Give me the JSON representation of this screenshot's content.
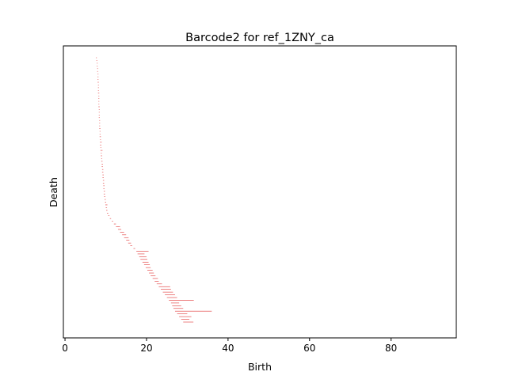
{
  "chart_data": {
    "type": "barcode",
    "title": "Barcode2 for ref_1ZNY_ca",
    "xlabel": "Birth",
    "ylabel": "Death",
    "xlim": [
      -0.4,
      96
    ],
    "x_ticks": [
      0,
      20,
      40,
      60,
      80
    ],
    "y_ticks": [],
    "grid": false,
    "bar_color": "#e03030",
    "bars": [
      {
        "birth": 7.6,
        "death": 7.8
      },
      {
        "birth": 7.7,
        "death": 7.9
      },
      {
        "birth": 7.8,
        "death": 8.0
      },
      {
        "birth": 7.8,
        "death": 8.0
      },
      {
        "birth": 7.9,
        "death": 8.1
      },
      {
        "birth": 7.9,
        "death": 8.1
      },
      {
        "birth": 8.0,
        "death": 8.2
      },
      {
        "birth": 8.0,
        "death": 8.2
      },
      {
        "birth": 8.0,
        "death": 8.2
      },
      {
        "birth": 8.0,
        "death": 8.3
      },
      {
        "birth": 8.1,
        "death": 8.3
      },
      {
        "birth": 8.1,
        "death": 8.3
      },
      {
        "birth": 8.1,
        "death": 8.3
      },
      {
        "birth": 8.1,
        "death": 8.4
      },
      {
        "birth": 8.2,
        "death": 8.4
      },
      {
        "birth": 8.2,
        "death": 8.4
      },
      {
        "birth": 8.2,
        "death": 8.4
      },
      {
        "birth": 8.2,
        "death": 8.4
      },
      {
        "birth": 8.2,
        "death": 8.5
      },
      {
        "birth": 8.3,
        "death": 8.5
      },
      {
        "birth": 8.3,
        "death": 8.5
      },
      {
        "birth": 8.3,
        "death": 8.5
      },
      {
        "birth": 8.3,
        "death": 8.5
      },
      {
        "birth": 8.4,
        "death": 8.6
      },
      {
        "birth": 8.4,
        "death": 8.6
      },
      {
        "birth": 8.4,
        "death": 8.6
      },
      {
        "birth": 8.4,
        "death": 8.7
      },
      {
        "birth": 8.5,
        "death": 8.7
      },
      {
        "birth": 8.5,
        "death": 8.7
      },
      {
        "birth": 8.5,
        "death": 8.8
      },
      {
        "birth": 8.6,
        "death": 8.8
      },
      {
        "birth": 8.6,
        "death": 9.0
      },
      {
        "birth": 8.6,
        "death": 8.9
      },
      {
        "birth": 8.7,
        "death": 8.9
      },
      {
        "birth": 8.7,
        "death": 9.2
      },
      {
        "birth": 8.8,
        "death": 9.0
      },
      {
        "birth": 8.8,
        "death": 9.1
      },
      {
        "birth": 8.9,
        "death": 9.1
      },
      {
        "birth": 8.9,
        "death": 9.2
      },
      {
        "birth": 9.0,
        "death": 9.3
      },
      {
        "birth": 9.0,
        "death": 9.3
      },
      {
        "birth": 9.1,
        "death": 9.4
      },
      {
        "birth": 9.1,
        "death": 9.4
      },
      {
        "birth": 9.2,
        "death": 9.5
      },
      {
        "birth": 9.2,
        "death": 9.5
      },
      {
        "birth": 9.3,
        "death": 9.6
      },
      {
        "birth": 9.3,
        "death": 9.6
      },
      {
        "birth": 9.4,
        "death": 9.7
      },
      {
        "birth": 9.4,
        "death": 9.7
      },
      {
        "birth": 9.5,
        "death": 9.8
      },
      {
        "birth": 9.5,
        "death": 9.8
      },
      {
        "birth": 9.6,
        "death": 9.9
      },
      {
        "birth": 9.7,
        "death": 10.0
      },
      {
        "birth": 9.8,
        "death": 10.1
      },
      {
        "birth": 9.9,
        "death": 10.4
      },
      {
        "birth": 10.0,
        "death": 10.3
      },
      {
        "birth": 10.1,
        "death": 10.4
      },
      {
        "birth": 10.3,
        "death": 10.6
      },
      {
        "birth": 10.6,
        "death": 10.9
      },
      {
        "birth": 11.0,
        "death": 11.3
      },
      {
        "birth": 11.5,
        "death": 11.8
      },
      {
        "birth": 12.0,
        "death": 12.5
      },
      {
        "birth": 12.5,
        "death": 13.5
      },
      {
        "birth": 13.0,
        "death": 13.8
      },
      {
        "birth": 13.5,
        "death": 14.5
      },
      {
        "birth": 14.0,
        "death": 15.0
      },
      {
        "birth": 14.5,
        "death": 15.6
      },
      {
        "birth": 15.0,
        "death": 15.8
      },
      {
        "birth": 15.5,
        "death": 16.2
      },
      {
        "birth": 16.0,
        "death": 16.5
      },
      {
        "birth": 16.8,
        "death": 17.2
      },
      {
        "birth": 17.5,
        "death": 20.5
      },
      {
        "birth": 17.8,
        "death": 19.5
      },
      {
        "birth": 18.2,
        "death": 20.0
      },
      {
        "birth": 18.5,
        "death": 20.2
      },
      {
        "birth": 19.0,
        "death": 20.5
      },
      {
        "birth": 19.4,
        "death": 20.8
      },
      {
        "birth": 19.8,
        "death": 21.0
      },
      {
        "birth": 20.2,
        "death": 21.5
      },
      {
        "birth": 20.6,
        "death": 21.8
      },
      {
        "birth": 21.0,
        "death": 22.2
      },
      {
        "birth": 21.5,
        "death": 22.8
      },
      {
        "birth": 22.0,
        "death": 23.0
      },
      {
        "birth": 22.5,
        "death": 23.8
      },
      {
        "birth": 23.0,
        "death": 25.8
      },
      {
        "birth": 23.5,
        "death": 26.0
      },
      {
        "birth": 24.0,
        "death": 26.5
      },
      {
        "birth": 24.5,
        "death": 27.0
      },
      {
        "birth": 25.0,
        "death": 27.5
      },
      {
        "birth": 25.5,
        "death": 31.6
      },
      {
        "birth": 26.0,
        "death": 28.0
      },
      {
        "birth": 26.3,
        "death": 28.5
      },
      {
        "birth": 26.6,
        "death": 29.0
      },
      {
        "birth": 27.0,
        "death": 36.0
      },
      {
        "birth": 27.5,
        "death": 30.0
      },
      {
        "birth": 28.0,
        "death": 31.0
      },
      {
        "birth": 28.5,
        "death": 30.5
      },
      {
        "birth": 29.0,
        "death": 31.5
      }
    ]
  }
}
